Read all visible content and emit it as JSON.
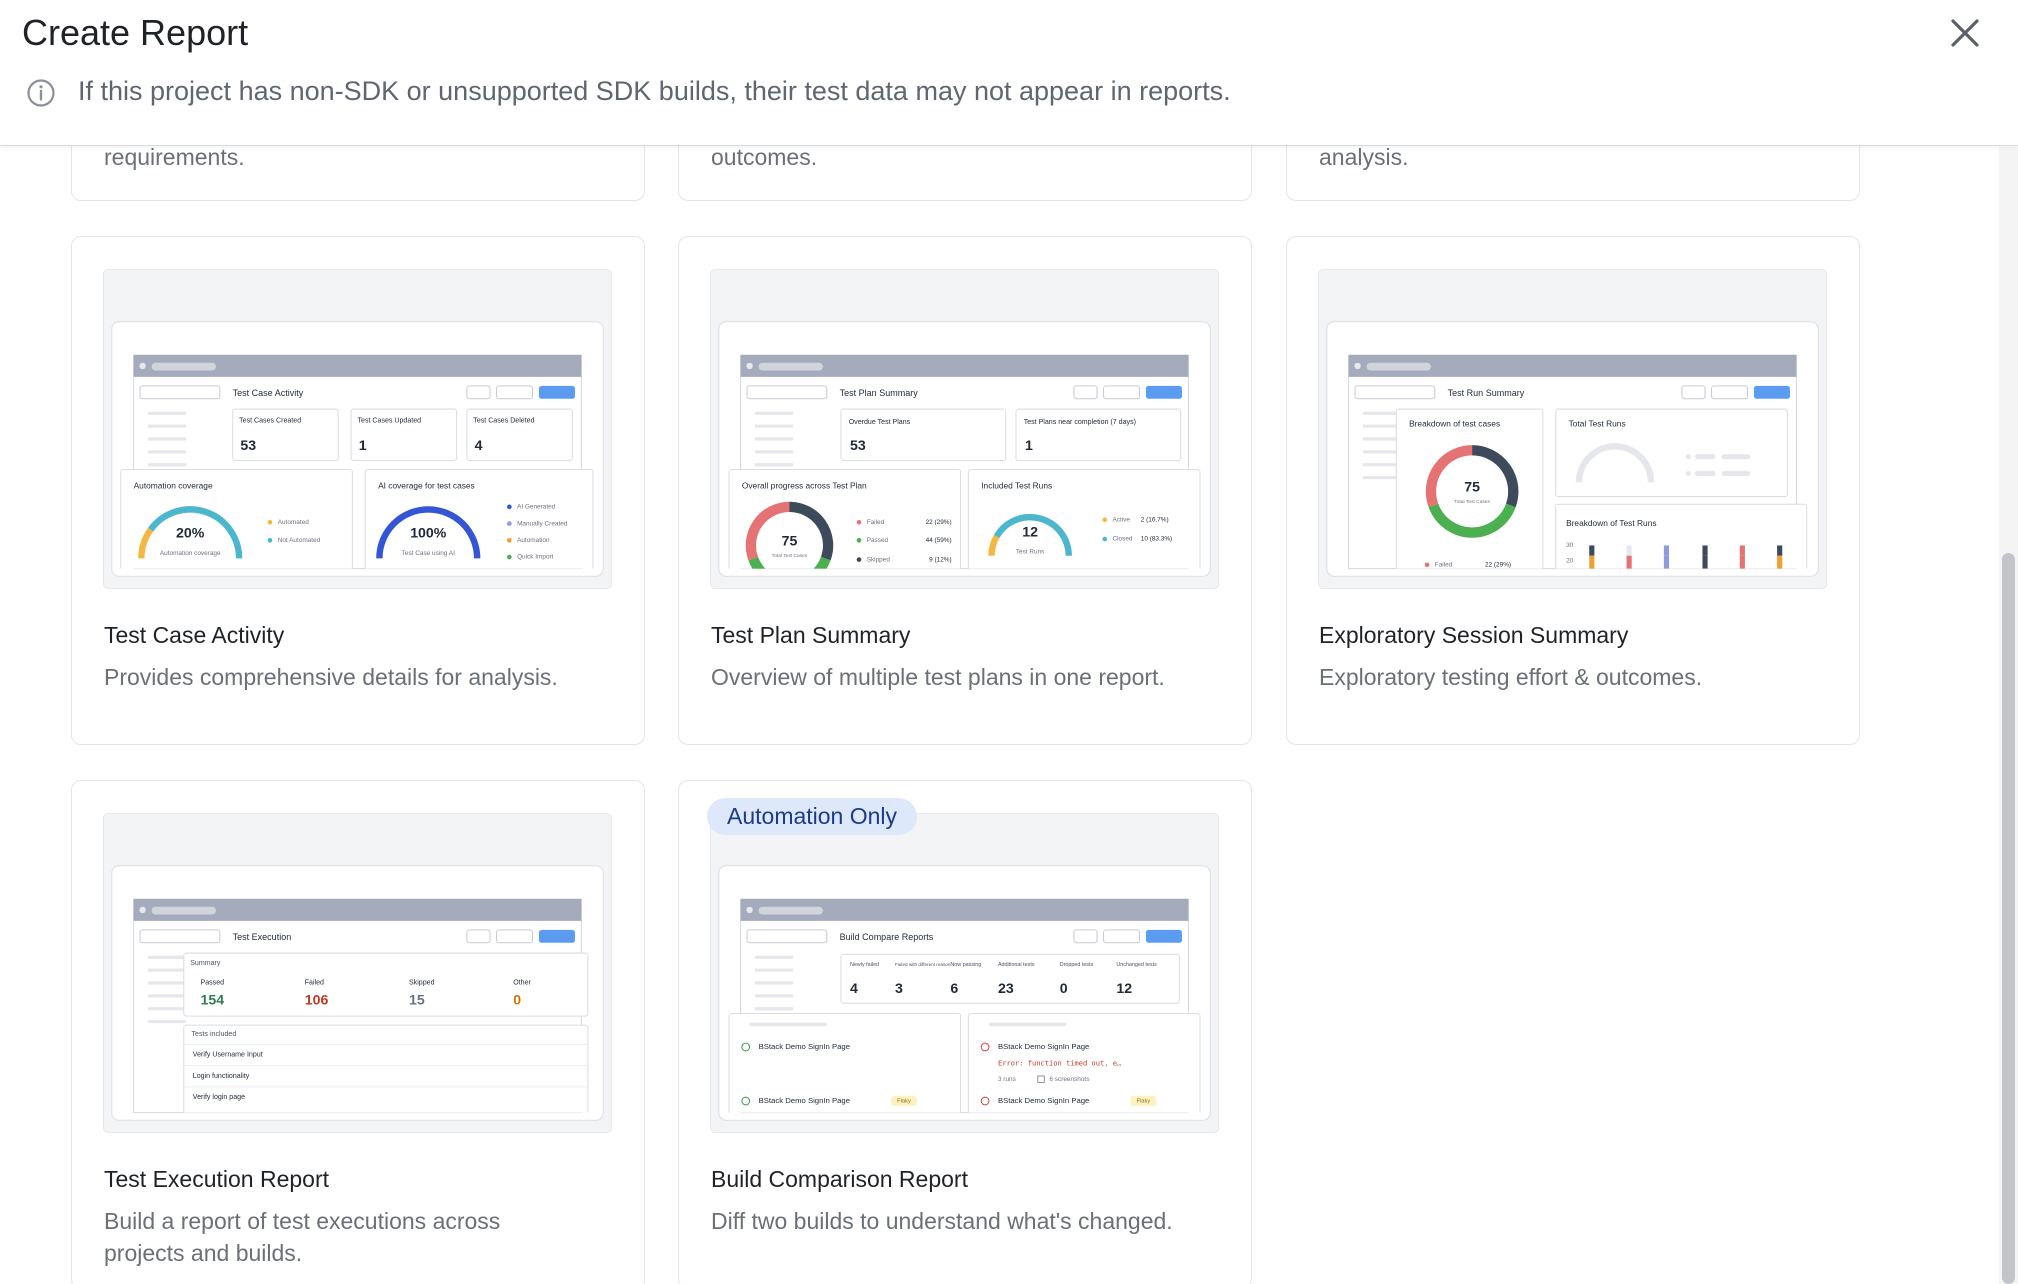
{
  "header": {
    "title": "Create Report",
    "notice": "If this project has non-SDK or unsupported SDK builds, their test data may not appear in reports."
  },
  "partial_cards": [
    {
      "description": "requirements."
    },
    {
      "description": "outcomes."
    },
    {
      "description": "analysis."
    }
  ],
  "cards": [
    {
      "title": "Test Case Activity",
      "description": "Provides comprehensive details for analysis.",
      "preview": {
        "heading": "Test Case Activity",
        "stats": [
          {
            "label": "Test Cases Created",
            "value": 53
          },
          {
            "label": "Test Cases Updated",
            "value": 1
          },
          {
            "label": "Test Cases Deleted",
            "value": 4
          }
        ],
        "panels": [
          {
            "title": "Automation coverage",
            "value": "20%",
            "caption": "Automation coverage",
            "legend": [
              "Automated",
              "Not Automated"
            ]
          },
          {
            "title": "AI coverage for test cases",
            "value": "100%",
            "caption": "Test Case using AI",
            "legend": [
              "AI Generated",
              "Manually Created",
              "Automation",
              "Quick Import"
            ]
          }
        ]
      }
    },
    {
      "title": "Test Plan Summary",
      "description": "Overview of multiple test plans in one report.",
      "preview": {
        "heading": "Test Plan Summary",
        "stats": [
          {
            "label": "Overdue Test Plans",
            "value": 53
          },
          {
            "label": "Test Plans near completion (7 days)",
            "value": 1
          }
        ],
        "panels": [
          {
            "title": "Overall progress across Test Plan",
            "value": 75,
            "caption": "Total Test Cases",
            "legend": [
              {
                "label": "Failed",
                "value": "22 (29%)"
              },
              {
                "label": "Passed",
                "value": "44 (59%)"
              },
              {
                "label": "Skipped",
                "value": "9 (12%)"
              }
            ]
          },
          {
            "title": "Included Test Runs",
            "value": 12,
            "caption": "Test Runs",
            "legend": [
              {
                "label": "Active",
                "value": "2 (16.7%)"
              },
              {
                "label": "Closed",
                "value": "10 (83.3%)"
              }
            ]
          }
        ]
      }
    },
    {
      "title": "Exploratory Session Summary",
      "description": "Exploratory testing effort & outcomes.",
      "preview": {
        "heading": "Test Run Summary",
        "panels": [
          {
            "title": "Breakdown of test cases",
            "value": 75,
            "caption": "Total Test Cases",
            "legend": [
              {
                "label": "Failed",
                "value": "22 (29%)"
              }
            ]
          },
          {
            "title": "Total Test Runs"
          },
          {
            "title": "Breakdown of Test Runs",
            "ticks": [
              30,
              20
            ]
          }
        ]
      }
    },
    {
      "title": "Test Execution Report",
      "description": "Build a report of test executions across projects and builds.",
      "preview": {
        "heading": "Test Execution",
        "summary": {
          "title": "Summary",
          "stats": [
            {
              "label": "Passed",
              "value": 154
            },
            {
              "label": "Failed",
              "value": 106
            },
            {
              "label": "Skipped",
              "value": 15
            },
            {
              "label": "Other",
              "value": 0
            }
          ]
        },
        "tests": {
          "title": "Tests included",
          "items": [
            "Verify Username Input",
            "Login functionality",
            "Verify login page"
          ]
        }
      }
    },
    {
      "title": "Build Comparison Report",
      "description": "Diff two builds to understand what's changed.",
      "badge": "Automation Only",
      "preview": {
        "heading": "Build Compare Reports",
        "stats": [
          {
            "label": "Newly failed",
            "value": 4
          },
          {
            "label": "Failed with different reason",
            "value": 3
          },
          {
            "label": "Now passing",
            "value": 6
          },
          {
            "label": "Additional tests",
            "value": 23
          },
          {
            "label": "Dropped tests",
            "value": 0
          },
          {
            "label": "Unchanged tests",
            "value": 12
          }
        ],
        "left": [
          {
            "name": "BStack Demo SignIn Page"
          },
          {
            "name": "BStack Demo SignIn Page",
            "tag": "Flaky"
          }
        ],
        "right": [
          {
            "name": "BStack Demo SignIn Page",
            "error": "Error: function timed out, e…",
            "runs": "3 runs",
            "screenshots": "6 screenshots"
          },
          {
            "name": "BStack Demo SignIn Page",
            "tag": "Flaky"
          }
        ]
      }
    }
  ]
}
